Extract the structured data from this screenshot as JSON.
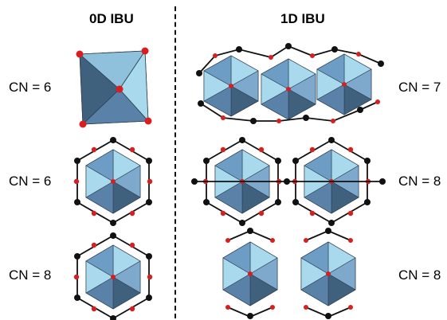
{
  "headers": {
    "zero_d": "0D IBU",
    "one_d": "1D IBU"
  },
  "rows": [
    {
      "left_label": "CN = 6",
      "right_label": "CN = 7"
    },
    {
      "left_label": "CN = 6",
      "right_label": "CN = 8"
    },
    {
      "left_label": "CN = 8",
      "right_label": "CN = 8"
    }
  ],
  "colors": {
    "polyhedron_light": "#a9d9ec",
    "polyhedron_mid": "#6d9cc4",
    "polyhedron_dark": "#40617e",
    "oxygen_atom": "#d81e1e",
    "carbon_atom": "#111111"
  }
}
